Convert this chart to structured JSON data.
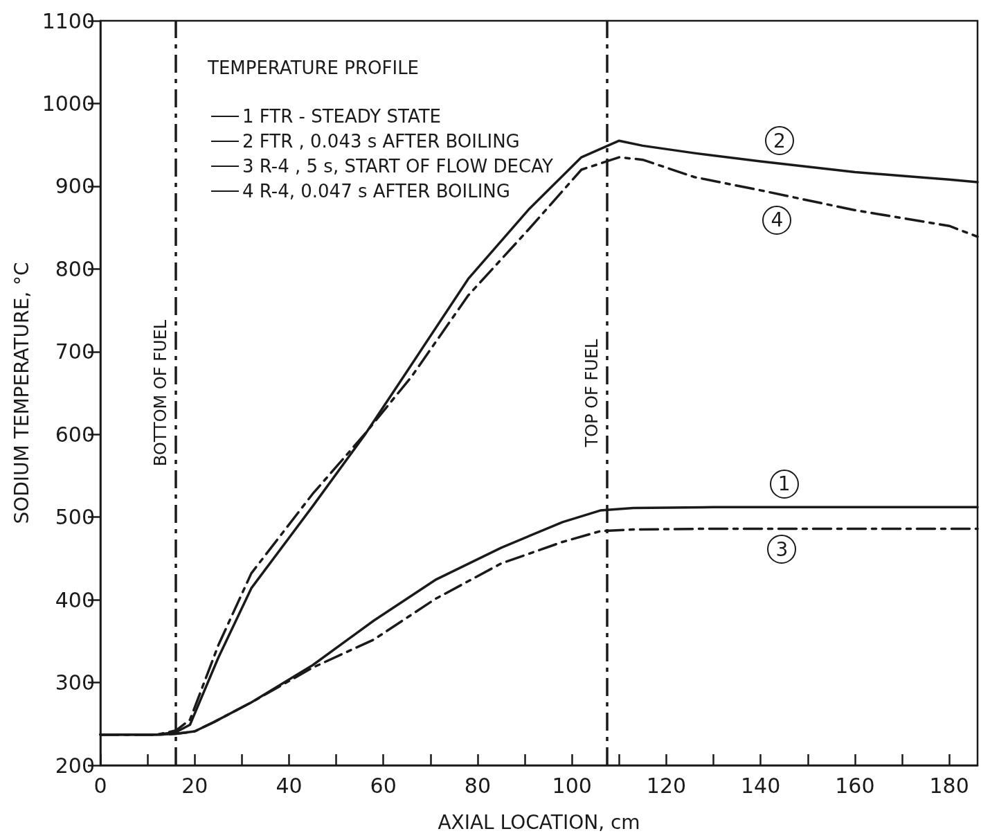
{
  "chart_data": {
    "type": "line",
    "xlabel": "AXIAL LOCATION, cm",
    "ylabel": "SODIUM TEMPERATURE, °C",
    "legend_title": "TEMPERATURE PROFILE",
    "legend": "top left",
    "grid": false,
    "marker": "none",
    "xlim": [
      0,
      186
    ],
    "xticks": [
      0,
      {
        "value": 10,
        "label": null
      },
      20,
      {
        "value": 30,
        "label": null
      },
      40,
      {
        "value": 50,
        "label": null
      },
      60,
      {
        "value": 70,
        "label": null
      },
      80,
      {
        "value": 90,
        "label": null
      },
      100,
      {
        "value": 110,
        "label": null
      },
      120,
      {
        "value": 130,
        "label": null
      },
      140,
      {
        "value": 150,
        "label": null
      },
      160,
      {
        "value": 170,
        "label": null
      },
      180
    ],
    "ylim": [
      200,
      1100
    ],
    "yticks": [
      200,
      300,
      400,
      500,
      600,
      700,
      800,
      900,
      1000,
      1100
    ],
    "series": [
      {
        "name": "1 FTR - STEADY STATE",
        "color": "#1a1a1a",
        "line_style": "solid",
        "x": [
          0,
          12,
          16,
          20,
          24,
          32,
          45,
          58,
          71,
          85,
          98,
          106,
          113,
          130,
          160,
          186
        ],
        "values": [
          237,
          237,
          238,
          241,
          252,
          276,
          321,
          375,
          424,
          463,
          494,
          508,
          511,
          512,
          512,
          512
        ]
      },
      {
        "name": "2 FTR , 0.043 s AFTER BOILING",
        "color": "#1a1a1a",
        "line_style": "solid",
        "x": [
          0,
          12,
          16,
          19,
          25,
          32,
          45,
          56,
          65,
          78,
          91,
          102,
          110,
          115,
          126,
          140,
          160,
          180,
          186
        ],
        "values": [
          237,
          237,
          240,
          249,
          330,
          414,
          513,
          599,
          676,
          788,
          873,
          935,
          955,
          949,
          940,
          930,
          917,
          908,
          905
        ]
      },
      {
        "name": "3 R-4 , 5 s, START OF FLOW DECAY",
        "color": "#1a1a1a",
        "line_style": "dashed",
        "x": [
          0,
          12,
          16,
          20,
          24,
          32,
          45,
          58,
          71,
          85,
          98,
          106,
          113,
          130,
          160,
          186
        ],
        "values": [
          237,
          237,
          238,
          241,
          252,
          276,
          318,
          352,
          401,
          444,
          470,
          483,
          485,
          486,
          486,
          486
        ]
      },
      {
        "name": "4 R-4, 0.047 s AFTER BOILING",
        "color": "#1a1a1a",
        "line_style": "dashed",
        "x": [
          0,
          12,
          16,
          19,
          25,
          32,
          45,
          56,
          66,
          78,
          91,
          102,
          110,
          115,
          126,
          140,
          160,
          180,
          186
        ],
        "values": [
          237,
          237,
          242,
          255,
          345,
          432,
          528,
          600,
          670,
          768,
          849,
          920,
          935,
          932,
          911,
          895,
          871,
          852,
          839
        ]
      }
    ],
    "ref_lines": [
      {
        "axis": "x",
        "value": 16,
        "label": "BOTTOM OF FUEL",
        "color": "#1a1a1a",
        "line_style": "dashed"
      },
      {
        "axis": "x",
        "value": 107.4,
        "label": "TOP OF FUEL",
        "color": "#1a1a1a",
        "line_style": "dashed"
      }
    ],
    "annotations": [
      {
        "text": "1",
        "x": 145,
        "y": 540
      },
      {
        "text": "2",
        "x": 144,
        "y": 955
      },
      {
        "text": "3",
        "x": 144.5,
        "y": 461
      },
      {
        "text": "4",
        "x": 143.5,
        "y": 859
      }
    ]
  }
}
